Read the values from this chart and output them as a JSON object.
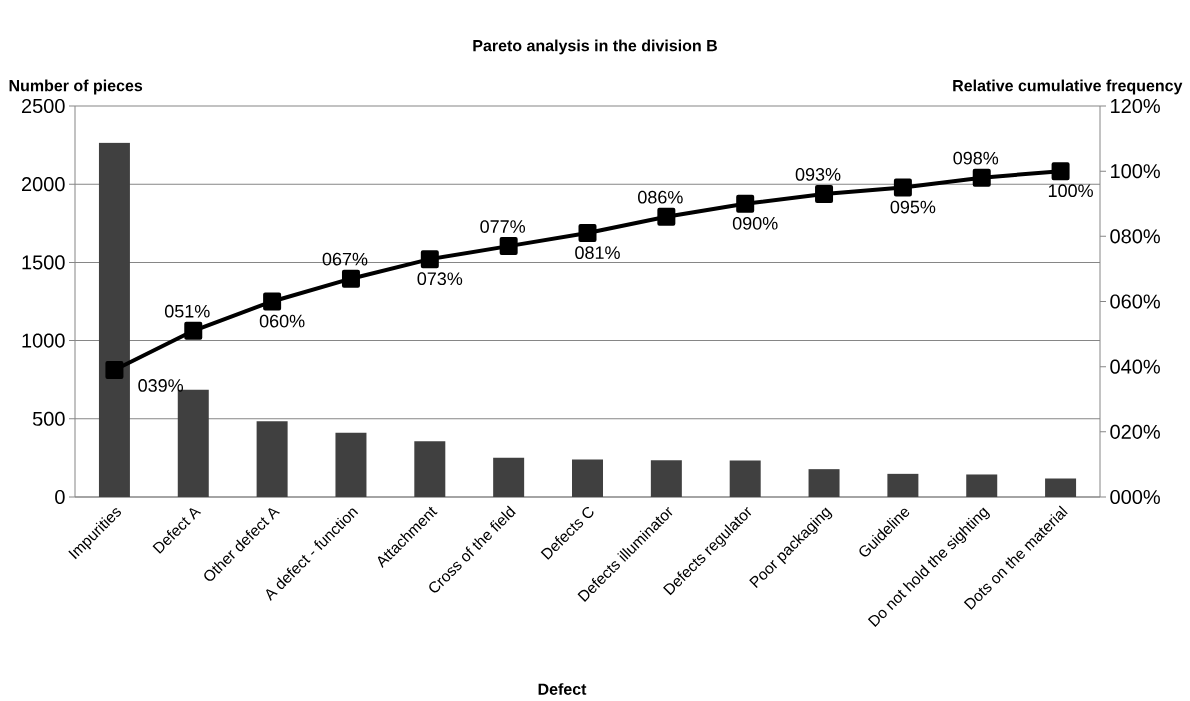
{
  "chart_data": {
    "type": "bar",
    "title": "Pareto analysis in the division B",
    "xlabel": "Defect",
    "ylabel": "Number of pieces",
    "y2label": "Relative cumulative frequency",
    "categories": [
      "Impurities",
      "Defect A",
      "Other defect A",
      "A defect - function",
      "Attachment",
      "Cross of the field",
      "Defects C",
      "Defects illuminator",
      "Defects regulator",
      "Poor packaging",
      "Guideline",
      "Do not hold the sighting",
      "Dots on the material"
    ],
    "series": [
      {
        "color": "#404040",
        "values": [
          2265,
          685,
          484,
          411,
          356,
          251,
          240,
          235,
          233,
          178,
          148,
          144,
          119
        ]
      },
      {
        "type": "line",
        "axis": "y2",
        "color": "#000000",
        "values": [
          39,
          51,
          60,
          67,
          73,
          77,
          81,
          86,
          90,
          93,
          95,
          98,
          100
        ],
        "value_labels": [
          "039%",
          "051%",
          "060%",
          "067%",
          "073%",
          "077%",
          "081%",
          "086%",
          "090%",
          "093%",
          "095%",
          "098%",
          "100%"
        ]
      }
    ],
    "ylim": [
      0,
      2500
    ],
    "yticks": [
      0,
      500,
      1000,
      1500,
      2000,
      2500
    ],
    "y2lim": [
      0,
      120
    ],
    "y2ticks": [
      {
        "value": 0,
        "label": "000%"
      },
      {
        "value": 20,
        "label": "020%"
      },
      {
        "value": 40,
        "label": "040%"
      },
      {
        "value": 60,
        "label": "060%"
      },
      {
        "value": 80,
        "label": "080%"
      },
      {
        "value": 100,
        "label": "100%"
      },
      {
        "value": 120,
        "label": "120%"
      }
    ],
    "grid": "y",
    "marker": "square"
  }
}
